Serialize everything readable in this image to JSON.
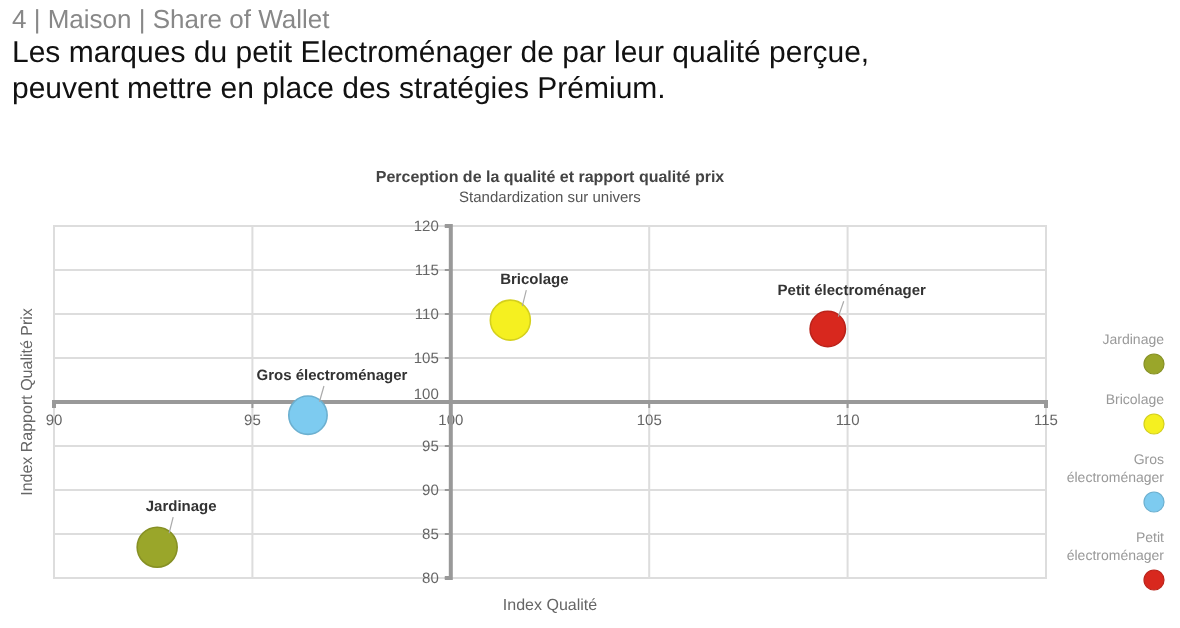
{
  "chart_data": {
    "type": "bubble",
    "title": "Perception de la qualité et rapport qualité prix",
    "subtitle": "Standardization sur univers",
    "xlabel": "Index Qualité",
    "ylabel": "Index Rapport Qualité Prix",
    "annotations": [
      "4 | Maison | Share of Wallet",
      "Les marques du petit Electroménager de par leur qualité perçue, peuvent mettre en place des stratégies Prémium."
    ],
    "xlim": [
      90,
      115
    ],
    "xticks": [
      90,
      95,
      100,
      105,
      110,
      115
    ],
    "ylim": [
      80,
      120
    ],
    "yticks": [
      80,
      85,
      90,
      95,
      100,
      105,
      110,
      115,
      120
    ],
    "grid": true,
    "legend": "right",
    "series": [
      {
        "name": "Jardinage",
        "color": "#9aa62a",
        "x": [
          92.6
        ],
        "values": [
          83.5
        ],
        "sizes": [
          1
        ]
      },
      {
        "name": "Bricolage",
        "color": "#f5f020",
        "x": [
          101.5
        ],
        "values": [
          109.3
        ],
        "sizes": [
          1
        ]
      },
      {
        "name": "Gros électroménager",
        "color": "#7dcbf0",
        "x": [
          96.4
        ],
        "values": [
          98.5
        ],
        "sizes": [
          0.92
        ]
      },
      {
        "name": "Petit électroménager",
        "color": "#d8281e",
        "x": [
          109.5
        ],
        "values": [
          108.3
        ],
        "sizes": [
          0.78
        ]
      }
    ]
  }
}
